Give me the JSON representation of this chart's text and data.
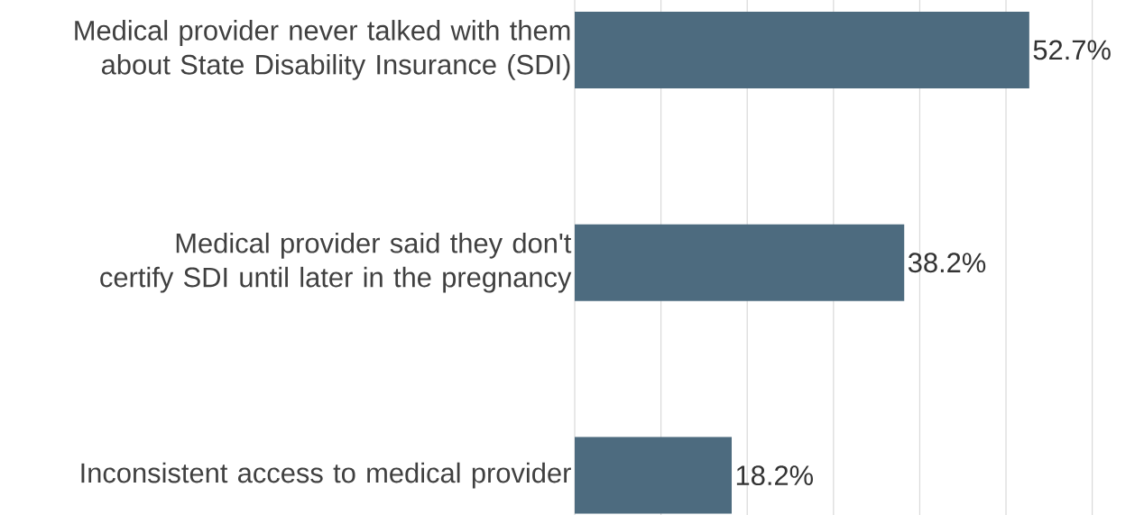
{
  "chart_data": {
    "type": "bar",
    "orientation": "horizontal",
    "categories": [
      "Medical provider never talked with them about State Disability Insurance (SDI)",
      "Medical provider said they don't certify SDI until later in the pregnancy",
      "Inconsistent access to medical provider"
    ],
    "values": [
      52.7,
      38.2,
      18.2
    ],
    "color": "#4d6b7f",
    "data_labels": true,
    "value_labels": [
      "52.7%",
      "38.2%",
      "18.2%"
    ],
    "xlim": [
      0,
      60
    ],
    "xticks": [
      {
        "value": 0,
        "label": null
      },
      {
        "value": 10,
        "label": null
      },
      {
        "value": 20,
        "label": null
      },
      {
        "value": 30,
        "label": null
      },
      {
        "value": 40,
        "label": null
      },
      {
        "value": 50,
        "label": null
      },
      {
        "value": 60,
        "label": null
      }
    ],
    "grid": "x",
    "tick_labels": "y"
  }
}
